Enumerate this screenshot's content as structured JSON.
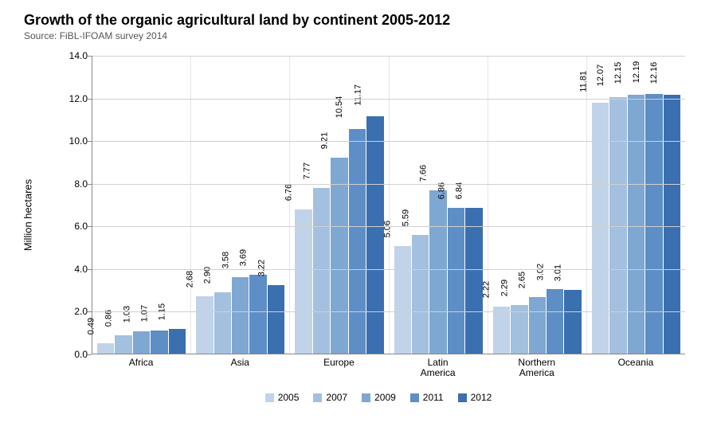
{
  "chart": {
    "type": "bar",
    "title": "Growth of the organic agricultural land by continent 2005-2012",
    "subtitle": "Source: FiBL-IFOAM survey 2014",
    "title_fontsize": 18,
    "subtitle_fontsize": 12,
    "ylabel": "Million hectares",
    "label_fontsize": 13,
    "ylim": [
      0,
      14
    ],
    "ytick_step": 2.0,
    "yticks": [
      "0.0",
      "2.0",
      "4.0",
      "6.0",
      "8.0",
      "10.0",
      "12.0",
      "14.0"
    ],
    "background_color": "#ffffff",
    "grid_color": "#d0d0d0",
    "axis_color": "#888888",
    "categories": [
      "Africa",
      "Asia",
      "Europe",
      "Latin America",
      "Northern America",
      "Oceania"
    ],
    "category_labels_html": [
      "Africa",
      "Asia",
      "Europe",
      "Latin<br>America",
      "Northern<br>America",
      "Oceania"
    ],
    "series": [
      {
        "name": "2005",
        "color": "#c0d3e8",
        "values": [
          0.49,
          2.68,
          6.76,
          5.06,
          2.22,
          11.81
        ]
      },
      {
        "name": "2007",
        "color": "#a3c0df",
        "values": [
          0.86,
          2.9,
          7.77,
          5.59,
          2.29,
          12.07
        ]
      },
      {
        "name": "2009",
        "color": "#7ea7d2",
        "values": [
          1.03,
          3.58,
          9.21,
          7.66,
          2.65,
          12.15
        ]
      },
      {
        "name": "2011",
        "color": "#5d8ec5",
        "values": [
          1.07,
          3.69,
          10.54,
          6.86,
          3.02,
          12.19
        ]
      },
      {
        "name": "2012",
        "color": "#3a6fb0",
        "values": [
          1.15,
          3.22,
          11.17,
          6.84,
          3.01,
          12.16
        ]
      }
    ],
    "value_label_fontsize": 11,
    "legend_fontsize": 12
  }
}
